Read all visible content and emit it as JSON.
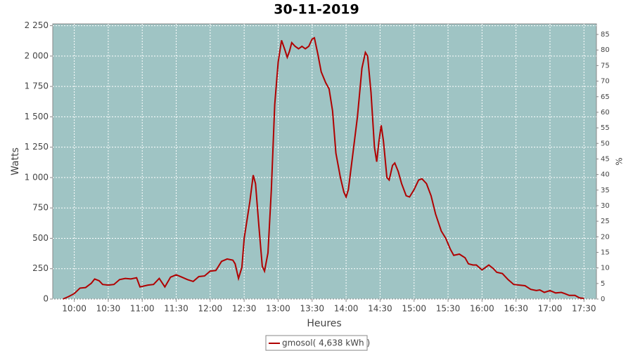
{
  "chart_data": {
    "type": "line",
    "title": "30-11-2019",
    "x_label": "Heures",
    "y_label": "Watts",
    "y2_label": "%",
    "x": [
      "09:50",
      "09:55",
      "10:00",
      "10:05",
      "10:10",
      "10:15",
      "10:18",
      "10:22",
      "10:25",
      "10:30",
      "10:35",
      "10:40",
      "10:45",
      "10:50",
      "10:55",
      "10:58",
      "11:05",
      "11:10",
      "11:15",
      "11:20",
      "11:25",
      "11:30",
      "11:35",
      "11:40",
      "11:45",
      "11:50",
      "11:55",
      "12:00",
      "12:05",
      "12:10",
      "12:15",
      "12:20",
      "12:22",
      "12:25",
      "12:28",
      "12:30",
      "12:35",
      "12:38",
      "12:40",
      "12:43",
      "12:46",
      "12:48",
      "12:51",
      "12:54",
      "12:57",
      "13:00",
      "13:03",
      "13:06",
      "13:08",
      "13:10",
      "13:12",
      "13:15",
      "13:18",
      "13:21",
      "13:24",
      "13:27",
      "13:30",
      "13:32",
      "13:35",
      "13:38",
      "13:42",
      "13:45",
      "13:48",
      "13:51",
      "13:55",
      "13:58",
      "14:00",
      "14:02",
      "14:06",
      "14:10",
      "14:14",
      "14:17",
      "14:19",
      "14:22",
      "14:25",
      "14:27",
      "14:29",
      "14:31",
      "14:33",
      "14:36",
      "14:38",
      "14:41",
      "14:43",
      "14:46",
      "14:49",
      "14:53",
      "14:56",
      "15:00",
      "15:04",
      "15:07",
      "15:11",
      "15:15",
      "15:19",
      "15:24",
      "15:28",
      "15:32",
      "15:35",
      "15:40",
      "15:45",
      "15:48",
      "15:52",
      "15:55",
      "16:00",
      "16:03",
      "16:06",
      "16:10",
      "16:13",
      "16:18",
      "16:23",
      "16:28",
      "16:33",
      "16:38",
      "16:43",
      "16:48",
      "16:51",
      "16:55",
      "17:00",
      "17:05",
      "17:10",
      "17:13",
      "17:17",
      "17:22",
      "17:26",
      "17:30"
    ],
    "series": [
      {
        "name": "gmosol( 4,638 kWh )",
        "color": "#b00000",
        "values": [
          0,
          20,
          45,
          90,
          95,
          130,
          165,
          150,
          120,
          115,
          120,
          160,
          170,
          165,
          175,
          100,
          115,
          120,
          170,
          100,
          180,
          200,
          180,
          160,
          145,
          185,
          190,
          230,
          235,
          310,
          330,
          320,
          290,
          170,
          260,
          500,
          800,
          1020,
          950,
          600,
          270,
          230,
          380,
          900,
          1600,
          1950,
          2130,
          2050,
          1990,
          2040,
          2110,
          2080,
          2060,
          2080,
          2060,
          2080,
          2140,
          2150,
          2020,
          1870,
          1780,
          1730,
          1550,
          1200,
          1000,
          880,
          840,
          900,
          1200,
          1500,
          1900,
          2030,
          2000,
          1700,
          1250,
          1130,
          1300,
          1430,
          1300,
          1000,
          980,
          1100,
          1120,
          1050,
          950,
          850,
          840,
          900,
          980,
          990,
          950,
          850,
          700,
          560,
          500,
          410,
          360,
          370,
          340,
          290,
          280,
          280,
          240,
          260,
          280,
          250,
          220,
          210,
          160,
          120,
          115,
          110,
          80,
          70,
          75,
          55,
          70,
          50,
          55,
          45,
          30,
          30,
          10,
          5
        ]
      }
    ],
    "xlim": [
      "09:41",
      "17:41"
    ],
    "xticks": [
      "10:00",
      "10:30",
      "11:00",
      "11:30",
      "12:00",
      "12:30",
      "13:00",
      "13:30",
      "14:00",
      "14:30",
      "15:00",
      "15:30",
      "16:00",
      "16:30",
      "17:00",
      "17:30"
    ],
    "ylim": [
      0,
      2265
    ],
    "yticks": [
      0,
      250,
      500,
      750,
      {
        "value": 1000,
        "label": "1 000"
      },
      {
        "value": 1250,
        "label": "1 250"
      },
      {
        "value": 1500,
        "label": "1 500"
      },
      {
        "value": 1750,
        "label": "1 750"
      },
      {
        "value": 2000,
        "label": "2 000"
      },
      {
        "value": 2250,
        "label": "2 250"
      }
    ],
    "y2lim": [
      0,
      88.4
    ],
    "y2ticks": [
      0,
      5,
      10,
      15,
      20,
      25,
      30,
      35,
      40,
      45,
      50,
      55,
      60,
      65,
      70,
      75,
      80,
      85
    ],
    "grid": true,
    "plot_background": "#9fc4c4"
  }
}
